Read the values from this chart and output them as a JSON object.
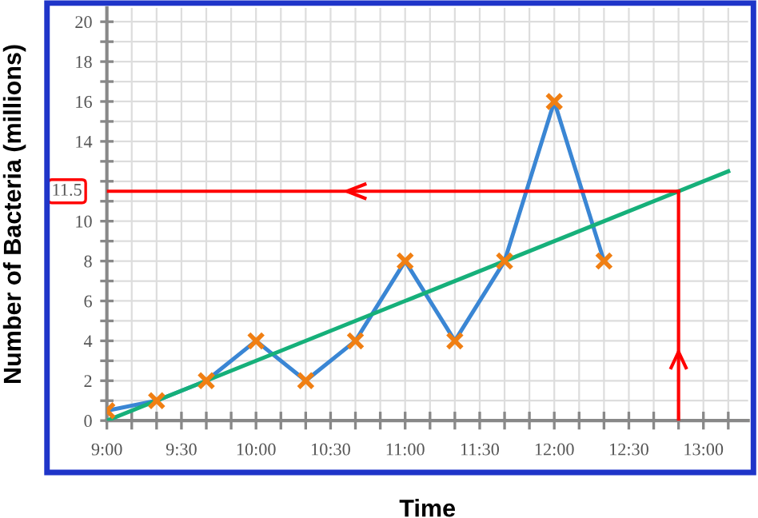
{
  "chart_data": {
    "type": "line",
    "xlabel": "Time",
    "ylabel": "Number of Bacteria (millions)",
    "series": [
      {
        "color": "#3a86d4",
        "marker": "none",
        "x": [
          9,
          9.3333,
          9.6667,
          10,
          10.3333,
          10.6667,
          11,
          11.3333,
          11.6667,
          12,
          12.3333
        ],
        "values": [
          0.5,
          1,
          2,
          4,
          2,
          4,
          8,
          4,
          8,
          16,
          8
        ]
      },
      {
        "type": "scatter",
        "color": "#f07f13",
        "marker": "cross",
        "x": [
          9,
          9.3333,
          9.6667,
          10,
          10.3333,
          10.6667,
          11,
          11.3333,
          11.6667,
          12,
          12.3333
        ],
        "values": [
          0.5,
          1,
          2,
          4,
          2,
          4,
          8,
          4,
          8,
          16,
          8
        ]
      },
      {
        "color": "#16b07a",
        "marker": "none",
        "x": [
          9,
          13.1667
        ],
        "values": [
          0,
          12.5
        ]
      }
    ],
    "ref_lines": [
      {
        "axis": "x",
        "value": 12.8333,
        "color": "#ff0000"
      },
      {
        "axis": "y",
        "value": 11.5,
        "label": "11.5",
        "color": "#ff0000"
      }
    ],
    "xlim": [
      9,
      13.3
    ],
    "ylim": [
      0,
      20.7
    ],
    "xticks": [
      {
        "value": 9,
        "label": "9:00"
      },
      {
        "value": 9.1667,
        "label": null
      },
      {
        "value": 9.3333,
        "label": null
      },
      {
        "value": 9.5,
        "label": "9:30"
      },
      {
        "value": 9.6667,
        "label": null
      },
      {
        "value": 9.8333,
        "label": null
      },
      {
        "value": 10,
        "label": "10:00"
      },
      {
        "value": 10.1667,
        "label": null
      },
      {
        "value": 10.3333,
        "label": null
      },
      {
        "value": 10.5,
        "label": "10:30"
      },
      {
        "value": 10.6667,
        "label": null
      },
      {
        "value": 10.8333,
        "label": null
      },
      {
        "value": 11,
        "label": "11:00"
      },
      {
        "value": 11.1667,
        "label": null
      },
      {
        "value": 11.3333,
        "label": null
      },
      {
        "value": 11.5,
        "label": "11:30"
      },
      {
        "value": 11.6667,
        "label": null
      },
      {
        "value": 11.8333,
        "label": null
      },
      {
        "value": 12,
        "label": "12:00"
      },
      {
        "value": 12.1667,
        "label": null
      },
      {
        "value": 12.3333,
        "label": null
      },
      {
        "value": 12.5,
        "label": "12:30"
      },
      {
        "value": 12.6667,
        "label": null
      },
      {
        "value": 12.8333,
        "label": null
      },
      {
        "value": 13,
        "label": "13:00"
      },
      {
        "value": 13.1667,
        "label": null
      }
    ],
    "yticks": [
      0,
      {
        "value": 1,
        "label": null
      },
      2,
      {
        "value": 3,
        "label": null
      },
      4,
      {
        "value": 5,
        "label": null
      },
      6,
      {
        "value": 7,
        "label": null
      },
      8,
      {
        "value": 9,
        "label": null
      },
      10,
      {
        "value": 11,
        "label": null
      },
      {
        "value": 12,
        "label": null
      },
      {
        "value": 13,
        "label": null
      },
      14,
      {
        "value": 15,
        "label": null
      },
      16,
      {
        "value": 17,
        "label": null
      },
      18,
      {
        "value": 19,
        "label": null
      },
      20
    ],
    "grid": true,
    "legend": false
  }
}
